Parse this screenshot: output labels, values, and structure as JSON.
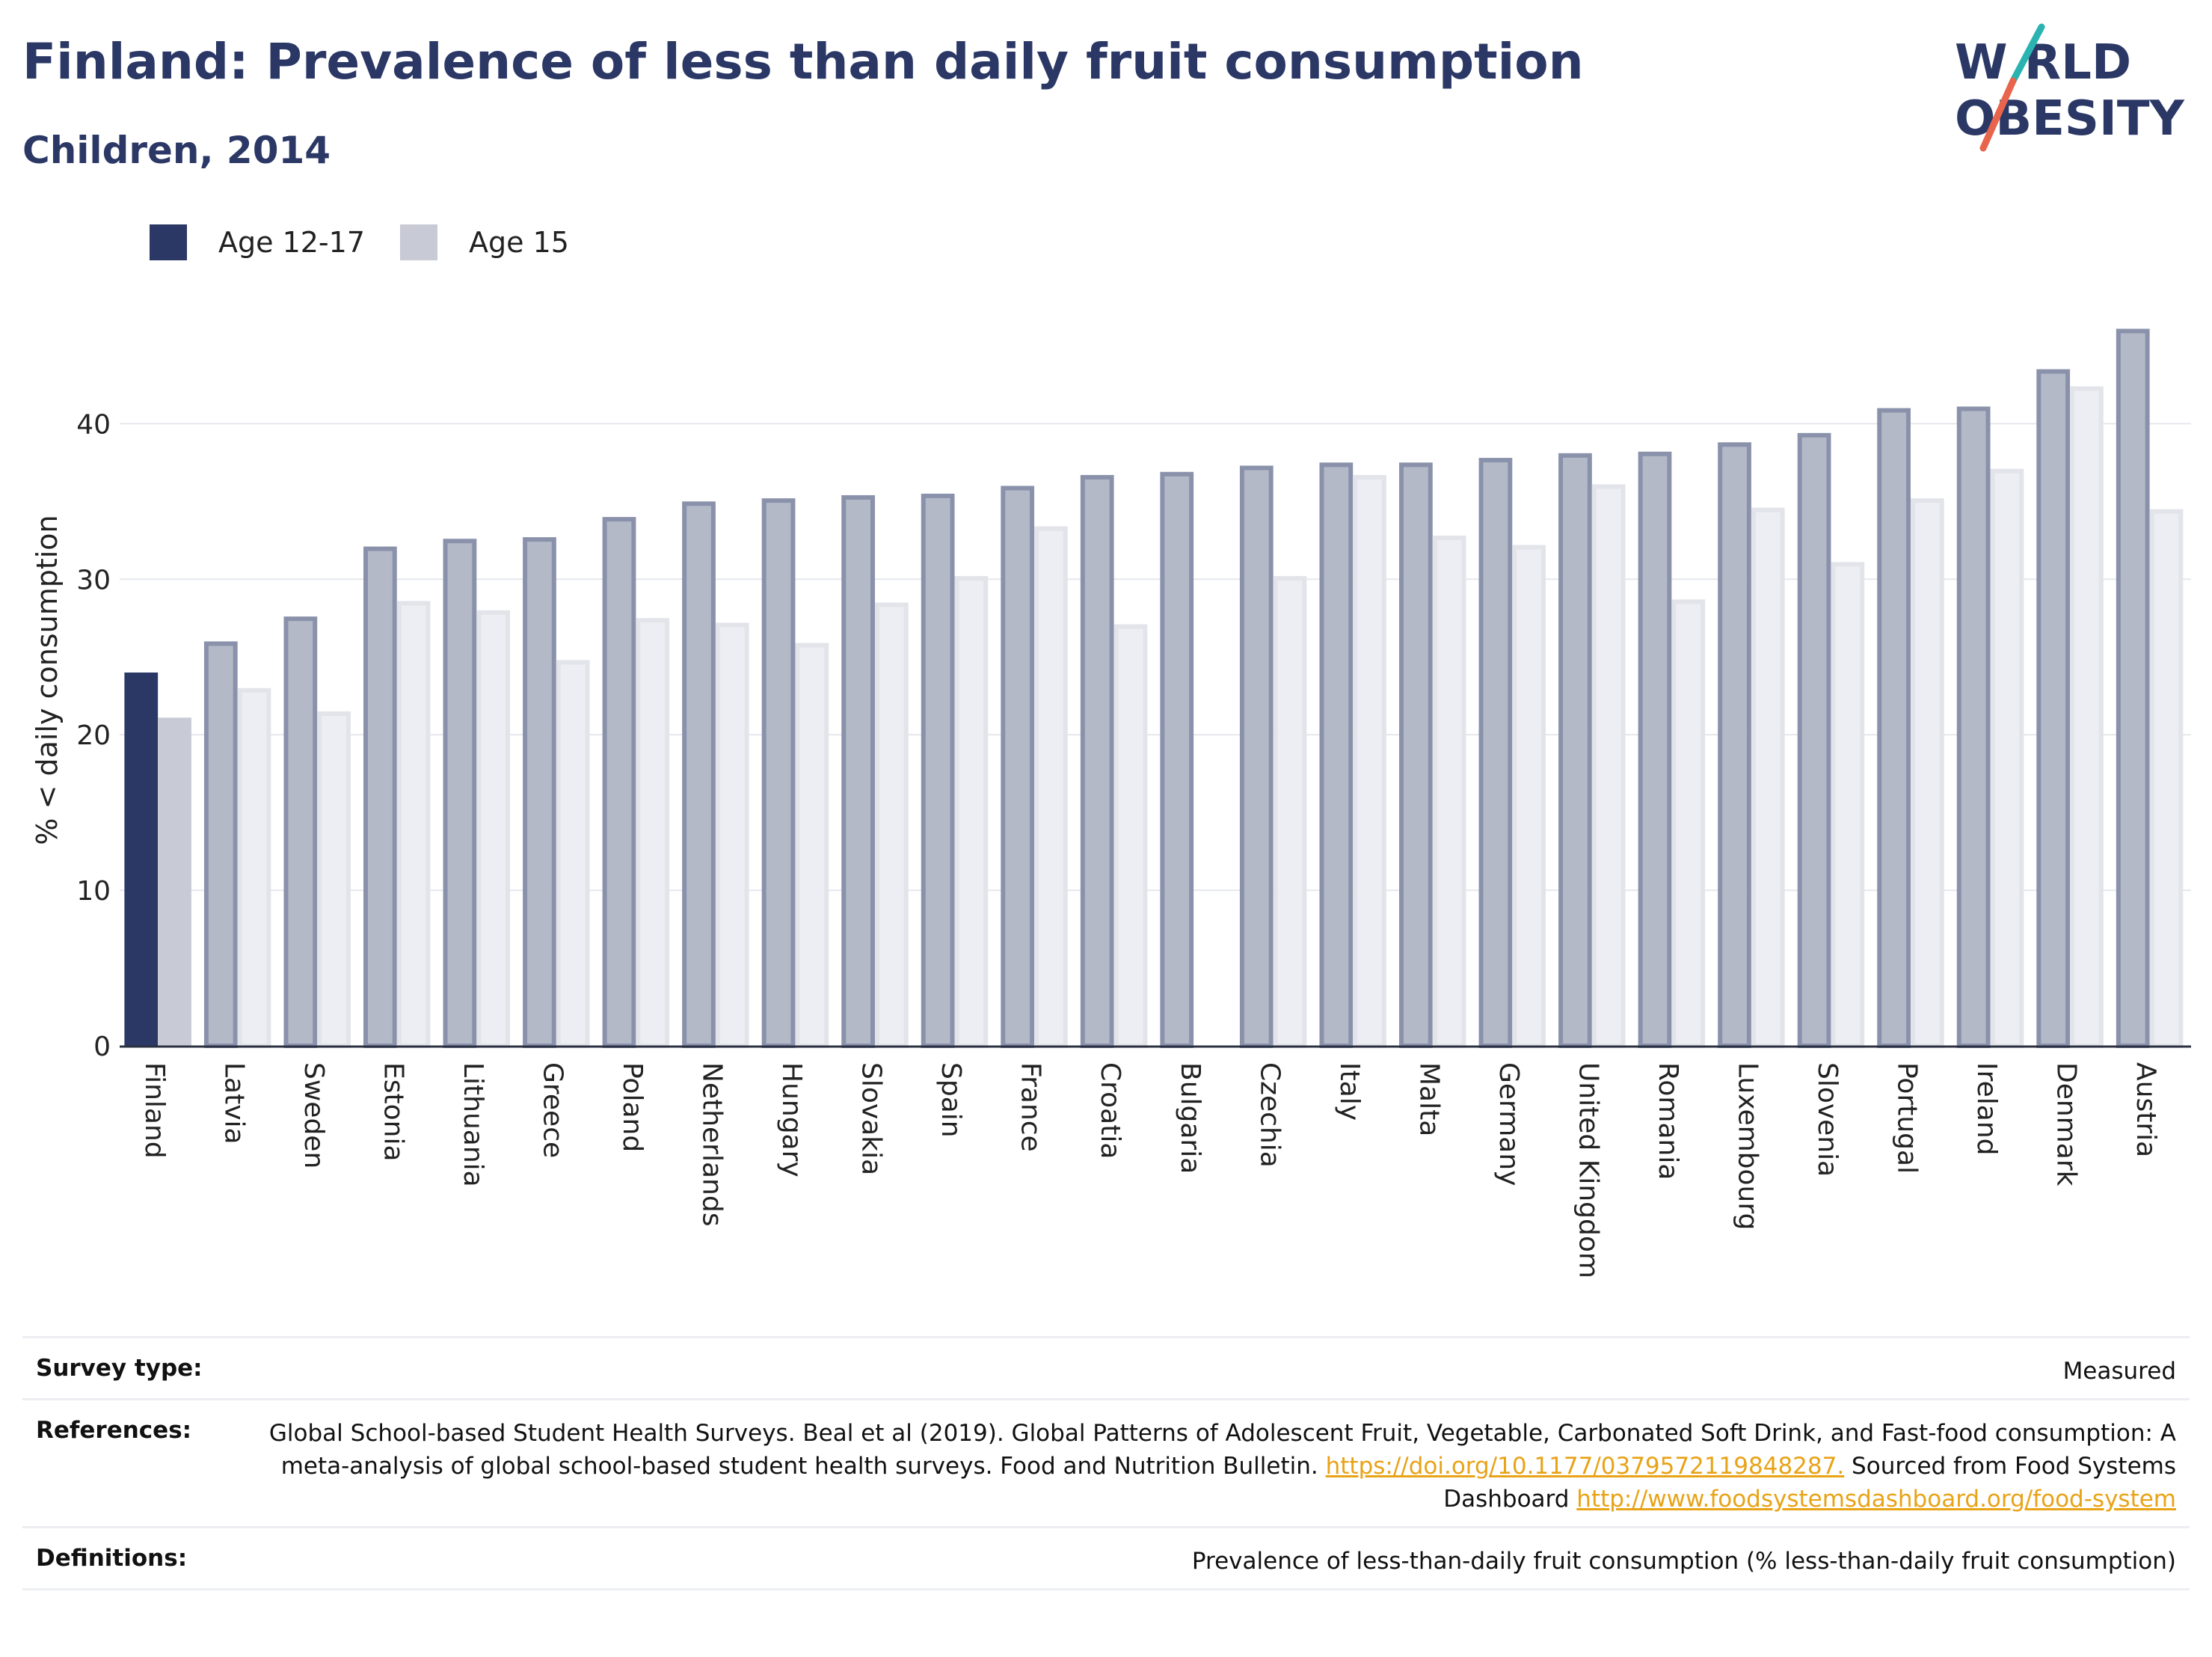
{
  "header": {
    "title": "Finland: Prevalence of less than daily fruit consumption",
    "subtitle": "Children, 2014"
  },
  "logo": {
    "line1": "W RLD",
    "line2": "OBESITY"
  },
  "legend": {
    "items": [
      {
        "label": "Age 12-17",
        "color": "#2b3866"
      },
      {
        "label": "Age 15",
        "color": "#c8cad5"
      }
    ]
  },
  "chart_data": {
    "type": "bar",
    "ylabel": "% < daily consumption",
    "xlabel": "",
    "ylim": [
      0,
      48
    ],
    "yticks": [
      0,
      10,
      20,
      30,
      40
    ],
    "grid": true,
    "legend_position": "top-left",
    "categories": [
      "Finland",
      "Latvia",
      "Sweden",
      "Estonia",
      "Lithuania",
      "Greece",
      "Poland",
      "Netherlands",
      "Hungary",
      "Slovakia",
      "Spain",
      "France",
      "Croatia",
      "Bulgaria",
      "Czechia",
      "Italy",
      "Malta",
      "Germany",
      "United Kingdom",
      "Romania",
      "Luxembourg",
      "Slovenia",
      "Portugal",
      "Ireland",
      "Denmark",
      "Austria"
    ],
    "highlight": "Finland",
    "series": [
      {
        "name": "Age 12-17",
        "color": "#2b3866",
        "values": [
          24.0,
          26.0,
          27.6,
          32.1,
          32.6,
          32.7,
          34.0,
          35.0,
          35.2,
          35.4,
          35.5,
          36.0,
          36.7,
          36.9,
          37.3,
          37.5,
          37.5,
          37.8,
          38.1,
          38.2,
          38.8,
          39.4,
          41.0,
          41.1,
          43.5,
          46.1
        ]
      },
      {
        "name": "Age 15",
        "color": "#c8cad5",
        "values": [
          21.1,
          23.0,
          21.5,
          28.6,
          28.0,
          24.8,
          27.5,
          27.2,
          25.9,
          28.5,
          30.2,
          33.4,
          27.1,
          null,
          30.2,
          36.7,
          32.8,
          32.2,
          36.1,
          28.7,
          34.6,
          31.1,
          35.2,
          37.1,
          42.4,
          34.5
        ]
      }
    ]
  },
  "info": {
    "rows": [
      {
        "key": "Survey type:",
        "value": "Measured"
      },
      {
        "key": "References:",
        "value_parts": [
          {
            "text": "Global School-based Student Health Surveys. Beal et al (2019). Global Patterns of Adolescent Fruit, Vegetable, Carbonated Soft Drink, and Fast-food consumption: A meta-analysis of global school-based student health surveys. Food and Nutrition Bulletin. ",
            "link": false
          },
          {
            "text": "https://doi.org/10.1177/0379572119848287.",
            "link": true
          },
          {
            "text": " Sourced from Food Systems Dashboard ",
            "link": false
          },
          {
            "text": "http://www.foodsystemsdashboard.org/food-system",
            "link": true
          }
        ]
      },
      {
        "key": "Definitions:",
        "value": "Prevalence of less-than-daily fruit consumption (% less-than-daily fruit consumption)"
      }
    ]
  }
}
